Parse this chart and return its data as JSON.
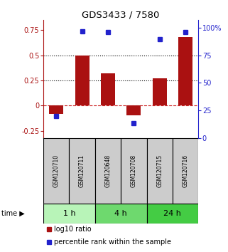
{
  "title": "GDS3433 / 7580",
  "samples": [
    "GSM120710",
    "GSM120711",
    "GSM120648",
    "GSM120708",
    "GSM120715",
    "GSM120716"
  ],
  "log10_ratio": [
    -0.08,
    0.5,
    0.32,
    -0.1,
    0.27,
    0.68
  ],
  "percentile_rank": [
    20,
    97,
    96,
    13,
    90,
    96
  ],
  "groups": [
    {
      "label": "1 h",
      "samples": [
        0,
        1
      ]
    },
    {
      "label": "4 h",
      "samples": [
        2,
        3
      ]
    },
    {
      "label": "24 h",
      "samples": [
        4,
        5
      ]
    }
  ],
  "bar_color": "#aa1111",
  "blue_color": "#2222cc",
  "ylim_left": [
    -0.32,
    0.85
  ],
  "ylim_right": [
    0,
    107
  ],
  "yticks_left": [
    -0.25,
    0,
    0.25,
    0.5,
    0.75
  ],
  "yticks_right": [
    0,
    25,
    50,
    75,
    100
  ],
  "ytick_labels_right": [
    "0",
    "25",
    "50",
    "75",
    "100%"
  ],
  "hlines": [
    0.25,
    0.5
  ],
  "hline_zero_color": "#cc2222",
  "hline_color": "black",
  "sample_box_color": "#cccccc",
  "group_colors": [
    "#b8f4b8",
    "#6ed96e",
    "#44cc44"
  ],
  "bar_width": 0.55,
  "blue_marker_size": 5,
  "legend_items": [
    "log10 ratio",
    "percentile rank within the sample"
  ],
  "time_label": "time"
}
